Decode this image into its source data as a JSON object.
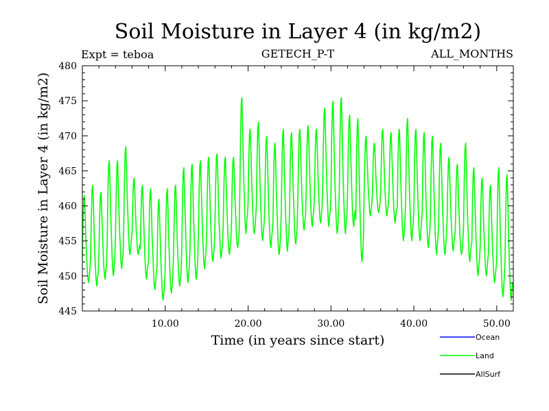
{
  "chart_data": {
    "type": "line",
    "title": "Soil Moisture in Layer 4 (in kg/m2)",
    "subtitle_left": "Expt = teboa",
    "subtitle_center": "GETECH_P-T",
    "subtitle_right": "ALL_MONTHS",
    "xlabel": "Time (in years since start)",
    "ylabel": "Soil Moisture in Layer 4 (in kg/m2)",
    "xlim": [
      0,
      52
    ],
    "ylim": [
      445,
      480
    ],
    "xticks": [
      10,
      20,
      30,
      40,
      50
    ],
    "xtick_labels": [
      "10.00",
      "20.00",
      "30.00",
      "40.00",
      "50.00"
    ],
    "yticks": [
      445,
      450,
      455,
      460,
      465,
      470,
      475,
      480
    ],
    "ytick_labels": [
      "445",
      "450",
      "455",
      "460",
      "465",
      "470",
      "475",
      "480"
    ],
    "series": [
      {
        "name": "Ocean",
        "color": "#0000ff",
        "x": [],
        "y": []
      },
      {
        "name": "Land",
        "color": "#00ff00",
        "annual_cycle": {
          "years": [
            0,
            1,
            2,
            3,
            4,
            5,
            6,
            7,
            8,
            9,
            10,
            11,
            12,
            13,
            14,
            15,
            16,
            17,
            18,
            19,
            20,
            21,
            22,
            23,
            24,
            25,
            26,
            27,
            28,
            29,
            30,
            31,
            32,
            33,
            34,
            35,
            36,
            37,
            38,
            39,
            40,
            41,
            42,
            43,
            44,
            45,
            46,
            47,
            48,
            49,
            50,
            51
          ],
          "annual_max": [
            461.5,
            463,
            462,
            466.5,
            466.5,
            468.5,
            464,
            463,
            462.5,
            461,
            462.5,
            463,
            465.5,
            466,
            466.5,
            467,
            467.5,
            467,
            467,
            475.5,
            471,
            472,
            470,
            469,
            471,
            470.5,
            471,
            471.5,
            471,
            474,
            475,
            475.5,
            473,
            472.5,
            470,
            469,
            471,
            470.5,
            471,
            472.5,
            471,
            470.5,
            470,
            469,
            467,
            466,
            469,
            465.5,
            464,
            463,
            465.5,
            464.5
          ],
          "annual_min": [
            449,
            448.5,
            449.5,
            450,
            451,
            453,
            453,
            449.5,
            448,
            446.5,
            447.5,
            448.5,
            449,
            449.5,
            451,
            452,
            452.5,
            453,
            454,
            456,
            456,
            455,
            454,
            453,
            453.5,
            454.5,
            456.5,
            457,
            457.5,
            457,
            456,
            456,
            457,
            452,
            458.5,
            459,
            458.5,
            457.5,
            455,
            455,
            455,
            454,
            453,
            453,
            453.5,
            453,
            452,
            450,
            450,
            449,
            447,
            446.5
          ]
        }
      },
      {
        "name": "AllSurf",
        "color": "#000000",
        "x": [],
        "y": []
      }
    ],
    "legend": {
      "position": "bottom-right",
      "entries": [
        "Ocean",
        "Land",
        "AllSurf"
      ]
    }
  }
}
